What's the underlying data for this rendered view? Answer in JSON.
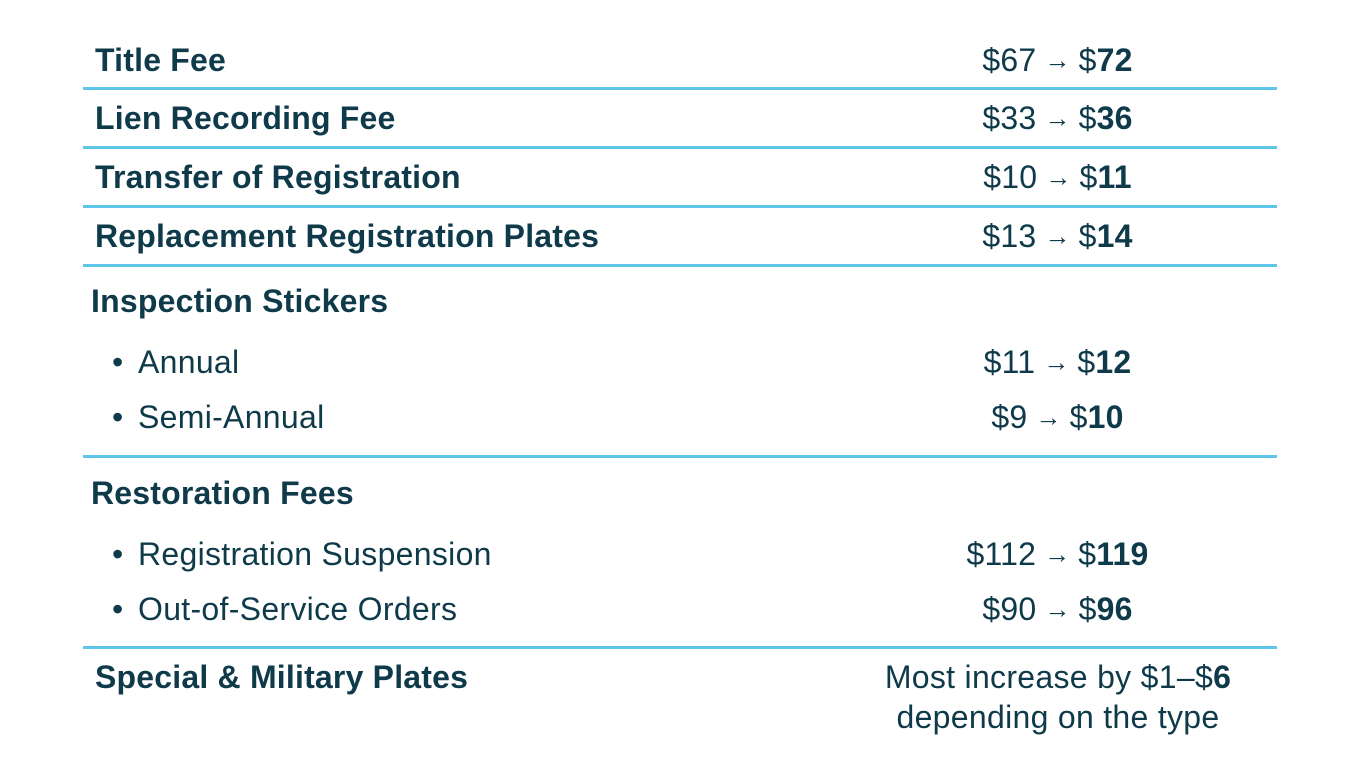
{
  "fees": [
    {
      "label": "Title Fee",
      "old": "$67",
      "arrow": "→",
      "new_prefix": "$",
      "new_value": "72"
    },
    {
      "label": "Lien Recording Fee",
      "old": "$33",
      "arrow": "→",
      "new_prefix": "$",
      "new_value": "36"
    },
    {
      "label": "Transfer of Registration",
      "old": "$10",
      "arrow": "→",
      "new_prefix": "$",
      "new_value": "11"
    },
    {
      "label": "Replacement Registration Plates",
      "old": "$13",
      "arrow": "→",
      "new_prefix": "$",
      "new_value": "14"
    }
  ],
  "inspection": {
    "title": "Inspection Stickers",
    "bullet": "•",
    "items": [
      {
        "label": "Annual",
        "old": "$11",
        "arrow": "→",
        "new_prefix": "$",
        "new_value": "12"
      },
      {
        "label": "Semi-Annual",
        "old": "$9",
        "arrow": "→",
        "new_prefix": "$",
        "new_value": "10"
      }
    ]
  },
  "restoration": {
    "title": "Restoration Fees",
    "bullet": "•",
    "items": [
      {
        "label": "Registration Suspension",
        "old": "$112",
        "arrow": "→",
        "new_prefix": "$",
        "new_value": "119"
      },
      {
        "label": "Out-of-Service Orders",
        "old": "$90",
        "arrow": "→",
        "new_prefix": "$",
        "new_value": "96"
      }
    ]
  },
  "special": {
    "label": "Special & Military Plates",
    "note_line1_prefix": "Most increase by $1–$",
    "note_line1_bold": "6",
    "note_line2": "depending on the type"
  },
  "colors": {
    "text": "#0f3a4a",
    "divider": "#5fc6e8"
  }
}
